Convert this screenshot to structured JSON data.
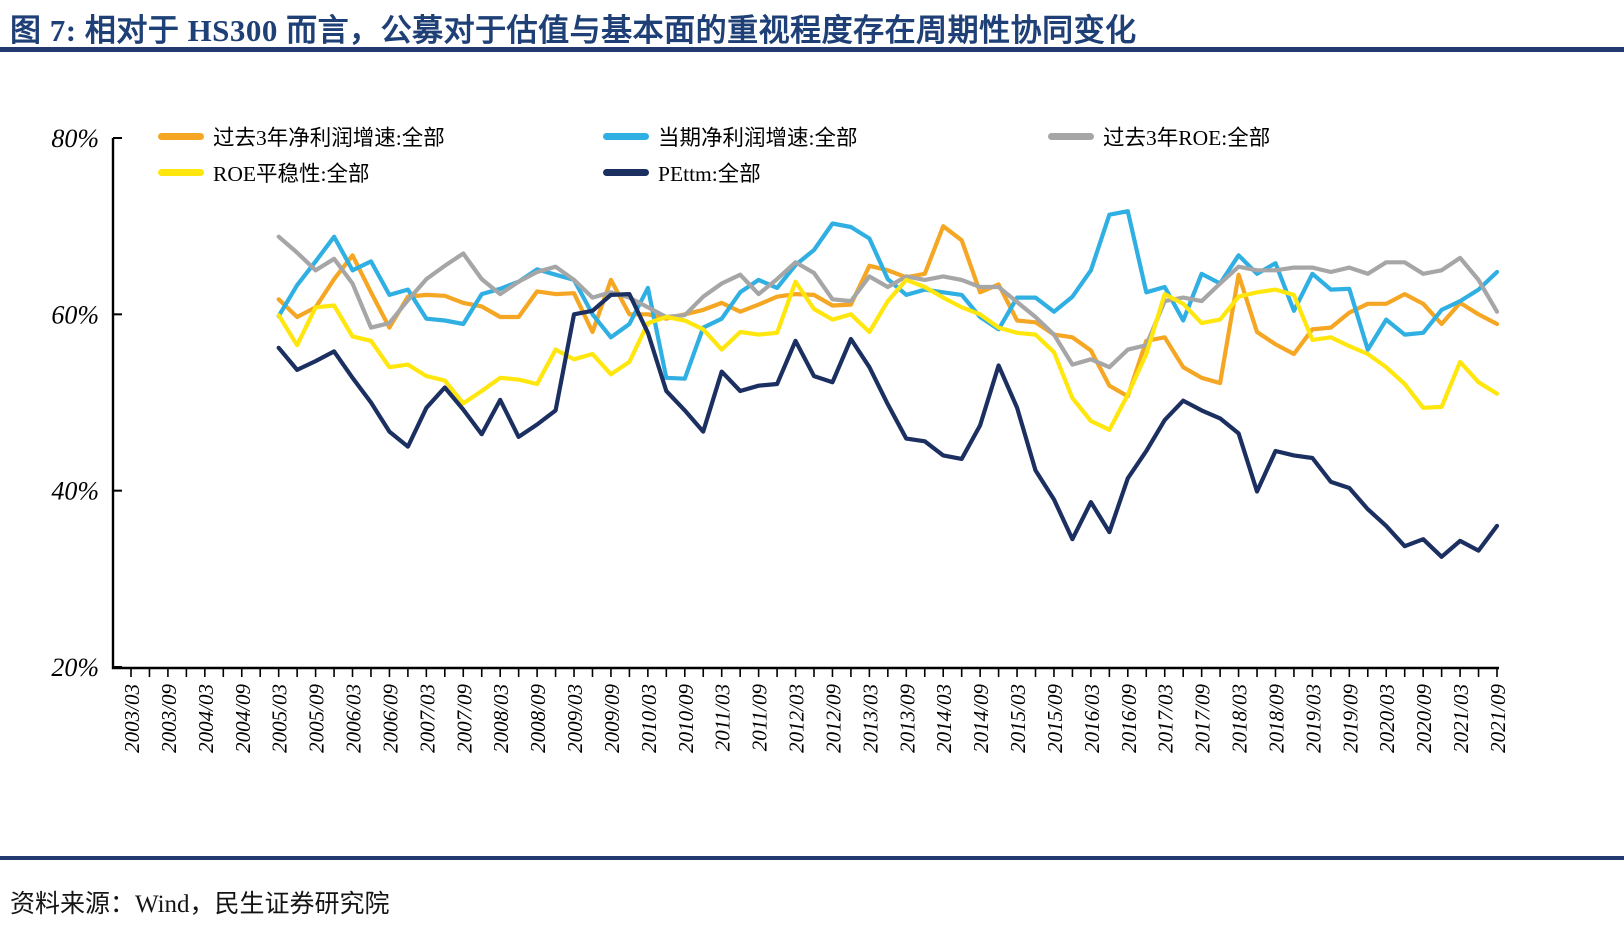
{
  "header": {
    "title": "图 7: 相对于 HS300 而言，公募对于估值与基本面的重视程度存在周期性协同变化"
  },
  "footer": {
    "source": "资料来源：Wind，民生证券研究院"
  },
  "colors": {
    "title": "#1F4077",
    "rule": "#233A70",
    "axis": "#000000",
    "tick_label": "#000000"
  },
  "chart_data": {
    "type": "line",
    "title": "",
    "xlabel": "",
    "ylabel": "",
    "grid": false,
    "legend_position": "top",
    "y_axis": {
      "min": 20,
      "max": 80,
      "unit": "%",
      "ticks": [
        {
          "value": 80,
          "label": "80%"
        },
        {
          "value": 60,
          "label": "60%"
        },
        {
          "value": 40,
          "label": "40%"
        },
        {
          "value": 20,
          "label": "20%"
        }
      ]
    },
    "x_axis": {
      "tick_frequency": "quarterly",
      "label_frequency": "semiannual",
      "tick_count": 75,
      "labels": [
        "2003/03",
        "2003/09",
        "2004/03",
        "2004/09",
        "2005/03",
        "2005/09",
        "2006/03",
        "2006/09",
        "2007/03",
        "2007/09",
        "2008/03",
        "2008/09",
        "2009/03",
        "2009/09",
        "2010/03",
        "2010/09",
        "2011/03",
        "2011/09",
        "2012/03",
        "2012/09",
        "2013/03",
        "2013/09",
        "2014/03",
        "2014/09",
        "2015/03",
        "2015/09",
        "2016/03",
        "2016/09",
        "2017/03",
        "2017/09",
        "2018/03",
        "2018/09",
        "2019/03",
        "2019/09",
        "2020/03",
        "2020/09",
        "2021/03",
        "2021/09"
      ]
    },
    "dates": [
      "2005/03",
      "2005/06",
      "2005/09",
      "2005/12",
      "2006/03",
      "2006/06",
      "2006/09",
      "2006/12",
      "2007/03",
      "2007/06",
      "2007/09",
      "2007/12",
      "2008/03",
      "2008/06",
      "2008/09",
      "2008/12",
      "2009/03",
      "2009/06",
      "2009/09",
      "2009/12",
      "2010/03",
      "2010/06",
      "2010/09",
      "2010/12",
      "2011/03",
      "2011/06",
      "2011/09",
      "2011/12",
      "2012/03",
      "2012/06",
      "2012/09",
      "2012/12",
      "2013/03",
      "2013/06",
      "2013/09",
      "2013/12",
      "2014/03",
      "2014/06",
      "2014/09",
      "2014/12",
      "2015/03",
      "2015/06",
      "2015/09",
      "2015/12",
      "2016/03",
      "2016/06",
      "2016/09",
      "2016/12",
      "2017/03",
      "2017/06",
      "2017/09",
      "2017/12",
      "2018/03",
      "2018/06",
      "2018/09",
      "2018/12",
      "2019/03",
      "2019/06",
      "2019/09",
      "2019/12",
      "2020/03",
      "2020/06",
      "2020/09",
      "2020/12",
      "2021/03",
      "2021/06",
      "2021/09"
    ],
    "start_quarter_index": 8,
    "series": [
      {
        "name": "过去3年净利润增速:全部",
        "color": "#F5A623",
        "values": [
          61.7,
          59.7,
          60.8,
          64.0,
          66.7,
          62.5,
          58.5,
          62.0,
          62.2,
          62.1,
          61.3,
          60.9,
          59.7,
          59.7,
          62.6,
          62.3,
          62.4,
          58.0,
          63.9,
          60.0,
          60.0,
          59.5,
          60.0,
          60.5,
          61.3,
          60.3,
          61.1,
          62.0,
          62.3,
          62.2,
          61.0,
          61.1,
          65.5,
          65.0,
          64.2,
          64.6,
          70.0,
          68.4,
          62.5,
          63.4,
          59.3,
          59.1,
          57.7,
          57.4,
          55.9,
          51.9,
          50.7,
          57.0,
          57.4,
          54.0,
          52.8,
          52.2,
          64.5,
          58.0,
          56.6,
          55.5,
          58.3,
          58.5,
          60.2,
          61.2,
          61.2,
          62.3,
          61.2,
          58.9,
          61.3,
          60.0,
          58.9
        ]
      },
      {
        "name": "当期净利润增速:全部",
        "color": "#30AFE3",
        "values": [
          59.8,
          63.3,
          66.0,
          68.8,
          65.0,
          66.0,
          62.2,
          62.8,
          59.5,
          59.3,
          58.9,
          62.3,
          62.9,
          63.7,
          65.1,
          64.5,
          63.9,
          60.0,
          57.4,
          58.9,
          63.0,
          52.8,
          52.7,
          58.5,
          59.5,
          62.5,
          63.9,
          63.0,
          65.6,
          67.3,
          70.3,
          69.9,
          68.6,
          64.0,
          62.2,
          62.8,
          62.5,
          62.2,
          59.7,
          58.3,
          61.9,
          61.9,
          60.3,
          62.0,
          65.0,
          71.3,
          71.7,
          62.5,
          63.1,
          59.3,
          64.6,
          63.5,
          66.7,
          64.6,
          65.8,
          60.4,
          64.6,
          62.8,
          62.9,
          56.0,
          59.4,
          57.7,
          57.9,
          60.5,
          61.5,
          62.8,
          64.8
        ]
      },
      {
        "name": "过去3年ROE:全部",
        "color": "#A6A6A6",
        "values": [
          68.8,
          67.0,
          65.0,
          66.3,
          63.5,
          58.5,
          59.0,
          61.6,
          64.0,
          65.5,
          66.9,
          64.0,
          62.3,
          63.7,
          64.8,
          65.4,
          63.9,
          61.9,
          62.5,
          61.9,
          60.8,
          59.7,
          59.9,
          62.0,
          63.5,
          64.5,
          62.3,
          64.0,
          65.9,
          64.7,
          61.7,
          61.5,
          64.3,
          63.1,
          64.3,
          63.9,
          64.3,
          63.9,
          63.1,
          63.1,
          61.4,
          59.7,
          57.7,
          54.3,
          54.9,
          54.0,
          56.0,
          56.5,
          61.5,
          61.9,
          61.5,
          63.5,
          65.4,
          65.0,
          65.0,
          65.3,
          65.3,
          64.8,
          65.3,
          64.6,
          65.9,
          65.9,
          64.6,
          65.0,
          66.4,
          63.9,
          60.3
        ]
      },
      {
        "name": "ROE平稳性:全部",
        "color": "#FFE60D",
        "values": [
          59.9,
          56.5,
          60.8,
          61.0,
          57.5,
          57.0,
          54.0,
          54.3,
          53.0,
          52.5,
          49.9,
          51.3,
          52.8,
          52.6,
          52.1,
          56.0,
          54.9,
          55.5,
          53.2,
          54.6,
          59.0,
          59.7,
          59.3,
          58.3,
          56.0,
          58.0,
          57.7,
          57.9,
          63.7,
          60.6,
          59.4,
          60.0,
          58.0,
          61.5,
          63.9,
          63.1,
          61.9,
          60.8,
          60.0,
          58.5,
          57.9,
          57.7,
          55.7,
          50.5,
          47.9,
          46.9,
          50.9,
          55.5,
          62.3,
          61.2,
          59.0,
          59.4,
          62.0,
          62.5,
          62.8,
          62.2,
          57.1,
          57.4,
          56.4,
          55.5,
          54.0,
          52.1,
          49.4,
          49.5,
          54.6,
          52.3,
          51.0
        ]
      },
      {
        "name": "PEttm:全部",
        "color": "#1B3061",
        "values": [
          56.2,
          53.7,
          54.7,
          55.8,
          52.8,
          50.0,
          46.7,
          45.0,
          49.4,
          51.7,
          49.2,
          46.4,
          50.3,
          46.1,
          47.5,
          49.1,
          60.0,
          60.4,
          62.2,
          62.3,
          57.9,
          51.3,
          49.1,
          46.7,
          53.5,
          51.3,
          51.9,
          52.1,
          57.0,
          53.0,
          52.3,
          57.2,
          54.0,
          49.8,
          45.9,
          45.6,
          44.0,
          43.6,
          47.4,
          54.2,
          49.4,
          42.3,
          39.0,
          34.5,
          38.7,
          35.3,
          41.4,
          44.5,
          48.0,
          50.2,
          49.1,
          48.2,
          46.5,
          39.9,
          44.5,
          44.0,
          43.7,
          41.0,
          40.3,
          37.9,
          36.0,
          33.7,
          34.5,
          32.5,
          34.3,
          33.2,
          36.0
        ]
      }
    ]
  }
}
